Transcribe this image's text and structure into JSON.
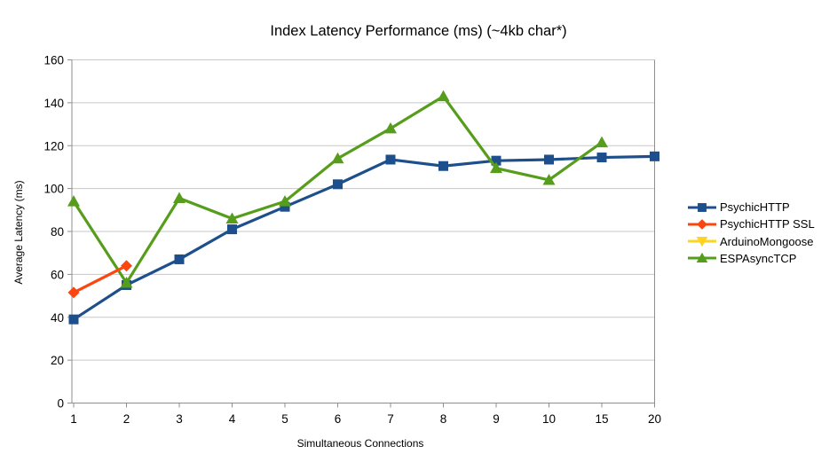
{
  "chart_data": {
    "type": "line",
    "title": "Index Latency Performance (ms) (~4kb char*)",
    "xlabel": "Simultaneous Connections",
    "ylabel": "Average Latency (ms)",
    "categories": [
      "1",
      "2",
      "3",
      "4",
      "5",
      "6",
      "7",
      "8",
      "9",
      "10",
      "15",
      "20"
    ],
    "ylim": [
      0,
      160
    ],
    "ytick_step": 20,
    "grid": "horizontal-only",
    "legend_position": "right",
    "axis_color": "#8e8e8e",
    "grid_color": "#c7c7c7",
    "series": [
      {
        "name": "PsychicHTTP",
        "color": "#1d4f8c",
        "marker": "square",
        "values": [
          39,
          55,
          67,
          81,
          91.5,
          102,
          113.5,
          110.5,
          113,
          113.5,
          114.5,
          115
        ]
      },
      {
        "name": "PsychicHTTP SSL",
        "color": "#fb470f",
        "marker": "diamond",
        "values": [
          51.5,
          64,
          null,
          null,
          null,
          null,
          null,
          null,
          null,
          null,
          null,
          null
        ]
      },
      {
        "name": "ArduinoMongoose",
        "color": "#ffd320",
        "marker": "triangle-down",
        "values": [
          null,
          null,
          null,
          null,
          null,
          null,
          null,
          null,
          null,
          null,
          null,
          null
        ]
      },
      {
        "name": "ESPAsyncTCP",
        "color": "#579d1c",
        "marker": "triangle-up",
        "values": [
          94,
          56,
          95.5,
          86,
          94,
          114,
          128,
          143,
          109.5,
          104,
          121.5,
          null
        ]
      }
    ]
  }
}
